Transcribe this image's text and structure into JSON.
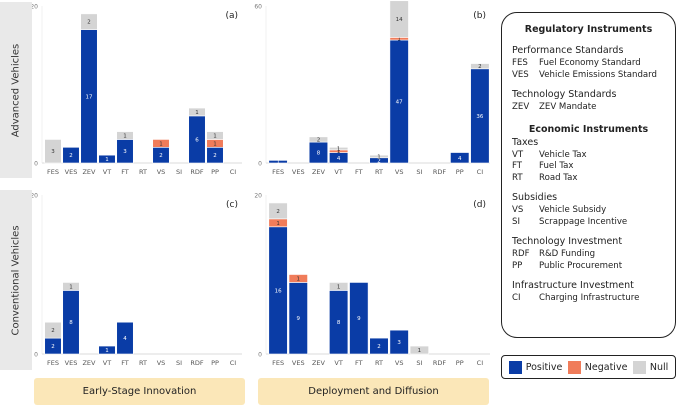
{
  "row_labels": [
    "Advanced Vehicles",
    "Conventional Vehicles"
  ],
  "col_labels": [
    "Early-Stage Innovation",
    "Deployment and Diffusion"
  ],
  "colors": {
    "positive": "#0a3ca6",
    "negative": "#f07c5a",
    "null": "#d4d4d4",
    "bar_border": "#ffffff"
  },
  "legend": {
    "title": "Regulatory Instruments",
    "regulatory_groups": [
      {
        "heading": "Performance Standards",
        "items": [
          {
            "abbr": "FES",
            "name": "Fuel Economy Standard"
          },
          {
            "abbr": "VES",
            "name": "Vehicle Emissions Standard"
          }
        ]
      },
      {
        "heading": "Technology Standards",
        "items": [
          {
            "abbr": "ZEV",
            "name": "ZEV Mandate"
          }
        ]
      }
    ],
    "subtitle": "Economic Instruments",
    "economic_groups": [
      {
        "heading": "Taxes",
        "items": [
          {
            "abbr": "VT",
            "name": "Vehicle Tax"
          },
          {
            "abbr": "FT",
            "name": "Fuel Tax"
          },
          {
            "abbr": "RT",
            "name": "Road Tax"
          }
        ]
      },
      {
        "heading": "Subsidies",
        "items": [
          {
            "abbr": "VS",
            "name": "Vehicle Subsidy"
          },
          {
            "abbr": "SI",
            "name": "Scrappage Incentive"
          }
        ]
      },
      {
        "heading": "Technology Investment",
        "items": [
          {
            "abbr": "RDF",
            "name": "R&D Funding"
          },
          {
            "abbr": "PP",
            "name": "Public Procurement"
          }
        ]
      },
      {
        "heading": "Infrastructure Investment",
        "items": [
          {
            "abbr": "CI",
            "name": "Charging Infrastructure"
          }
        ]
      }
    ]
  },
  "key": [
    {
      "label": "Positive",
      "color": "#0a3ca6"
    },
    {
      "label": "Negative",
      "color": "#f07c5a"
    },
    {
      "label": "Null",
      "color": "#d4d4d4"
    }
  ],
  "chart_data": [
    {
      "type": "bar",
      "stacked": true,
      "panel": "(a)",
      "row": "Advanced Vehicles",
      "column": "Early-Stage Innovation",
      "categories": [
        "FES",
        "VES",
        "ZEV",
        "VT",
        "FT",
        "RT",
        "VS",
        "SI",
        "RDF",
        "PP",
        "CI"
      ],
      "ylim": [
        0,
        20
      ],
      "yticks": [
        0,
        20
      ],
      "series": [
        {
          "name": "Positive",
          "values": [
            0,
            2,
            17,
            1,
            3,
            0,
            2,
            0,
            6,
            2,
            0
          ]
        },
        {
          "name": "Negative",
          "values": [
            0,
            0,
            0,
            0,
            0,
            0,
            1,
            0,
            0,
            1,
            0
          ]
        },
        {
          "name": "Null",
          "values": [
            3,
            0,
            2,
            0,
            1,
            0,
            0,
            0,
            1,
            1,
            0
          ]
        }
      ]
    },
    {
      "type": "bar",
      "stacked": true,
      "panel": "(b)",
      "row": "Advanced Vehicles",
      "column": "Deployment and Diffusion",
      "categories": [
        "FES",
        "VES",
        "ZEV",
        "VT",
        "FT",
        "RT",
        "VS",
        "SI",
        "RDF",
        "PP",
        "CI"
      ],
      "ylim": [
        0,
        60
      ],
      "yticks": [
        0,
        60
      ],
      "series": [
        {
          "name": "Positive",
          "values": [
            1,
            0,
            8,
            4,
            0,
            2,
            47,
            0,
            0,
            4,
            36
          ]
        },
        {
          "name": "Negative",
          "values": [
            0,
            0,
            0,
            1,
            0,
            0,
            1,
            0,
            0,
            0,
            0
          ]
        },
        {
          "name": "Null",
          "values": [
            0,
            0,
            2,
            1,
            0,
            1,
            14,
            0,
            0,
            0,
            2
          ]
        }
      ]
    },
    {
      "type": "bar",
      "stacked": true,
      "panel": "(c)",
      "row": "Conventional Vehicles",
      "column": "Early-Stage Innovation",
      "categories": [
        "FES",
        "VES",
        "ZEV",
        "VT",
        "FT",
        "RT",
        "VS",
        "SI",
        "RDF",
        "PP",
        "CI"
      ],
      "ylim": [
        0,
        20
      ],
      "yticks": [
        0,
        20
      ],
      "series": [
        {
          "name": "Positive",
          "values": [
            2,
            8,
            0,
            1,
            4,
            0,
            0,
            0,
            0,
            0,
            0
          ]
        },
        {
          "name": "Negative",
          "values": [
            0,
            0,
            0,
            0,
            0,
            0,
            0,
            0,
            0,
            0,
            0
          ]
        },
        {
          "name": "Null",
          "values": [
            2,
            1,
            0,
            0,
            0,
            0,
            0,
            0,
            0,
            0,
            0
          ]
        }
      ]
    },
    {
      "type": "bar",
      "stacked": true,
      "panel": "(d)",
      "row": "Conventional Vehicles",
      "column": "Deployment and Diffusion",
      "categories": [
        "FES",
        "VES",
        "ZEV",
        "VT",
        "FT",
        "RT",
        "VS",
        "SI",
        "RDF",
        "PP",
        "CI"
      ],
      "ylim": [
        0,
        20
      ],
      "yticks": [
        0,
        20
      ],
      "series": [
        {
          "name": "Positive",
          "values": [
            16,
            9,
            0,
            8,
            9,
            2,
            3,
            0,
            0,
            0,
            0
          ]
        },
        {
          "name": "Negative",
          "values": [
            1,
            1,
            0,
            0,
            0,
            0,
            0,
            0,
            0,
            0,
            0
          ]
        },
        {
          "name": "Null",
          "values": [
            2,
            0,
            0,
            1,
            0,
            0,
            0,
            1,
            0,
            0,
            0
          ]
        }
      ]
    }
  ]
}
